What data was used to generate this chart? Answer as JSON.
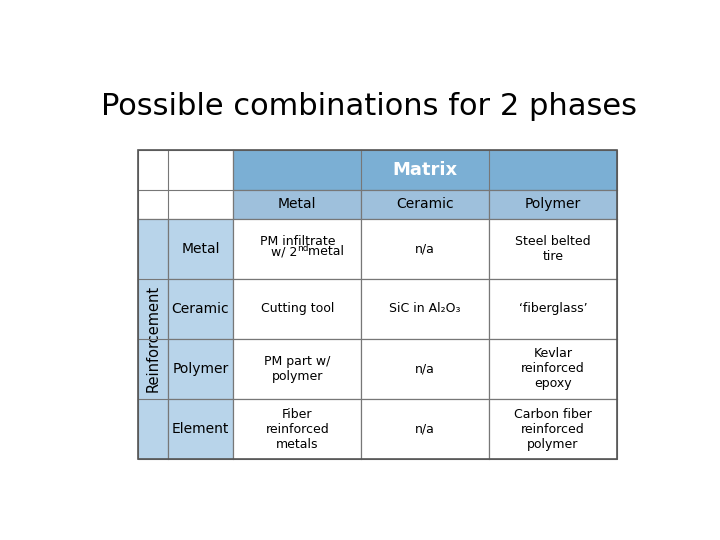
{
  "title": "Possible combinations for 2 phases",
  "title_fontsize": 22,
  "title_color": "#000000",
  "bg_color": "#ffffff",
  "header_blue": "#7bafd4",
  "sub_header_blue": "#9ec0dc",
  "reinf_blue": "#b8d4ea",
  "matrix_header_text": "Matrix",
  "col_headers": [
    "Metal",
    "Ceramic",
    "Polymer"
  ],
  "row_headers": [
    "Metal",
    "Ceramic",
    "Polymer",
    "Element"
  ],
  "reinf_label": "Reinforcement",
  "cells": [
    [
      "PM infiltrate\nw/ 2ⁿᵈ metal",
      "n/a",
      "Steel belted\ntire"
    ],
    [
      "Cutting tool",
      "SiC in Al₂O₃",
      "‘fiberglass’"
    ],
    [
      "PM part w/\npolymer",
      "n/a",
      "Kevlar\nreinforced\nepoxy"
    ],
    [
      "Fiber\nreinforced\nmetals",
      "n/a",
      "Carbon fiber\nreinforced\npolymer"
    ]
  ],
  "fontsize": 9.0,
  "header_fontsize": 10.0,
  "matrix_fontsize": 13.0,
  "reinf_fontsize": 10.5
}
